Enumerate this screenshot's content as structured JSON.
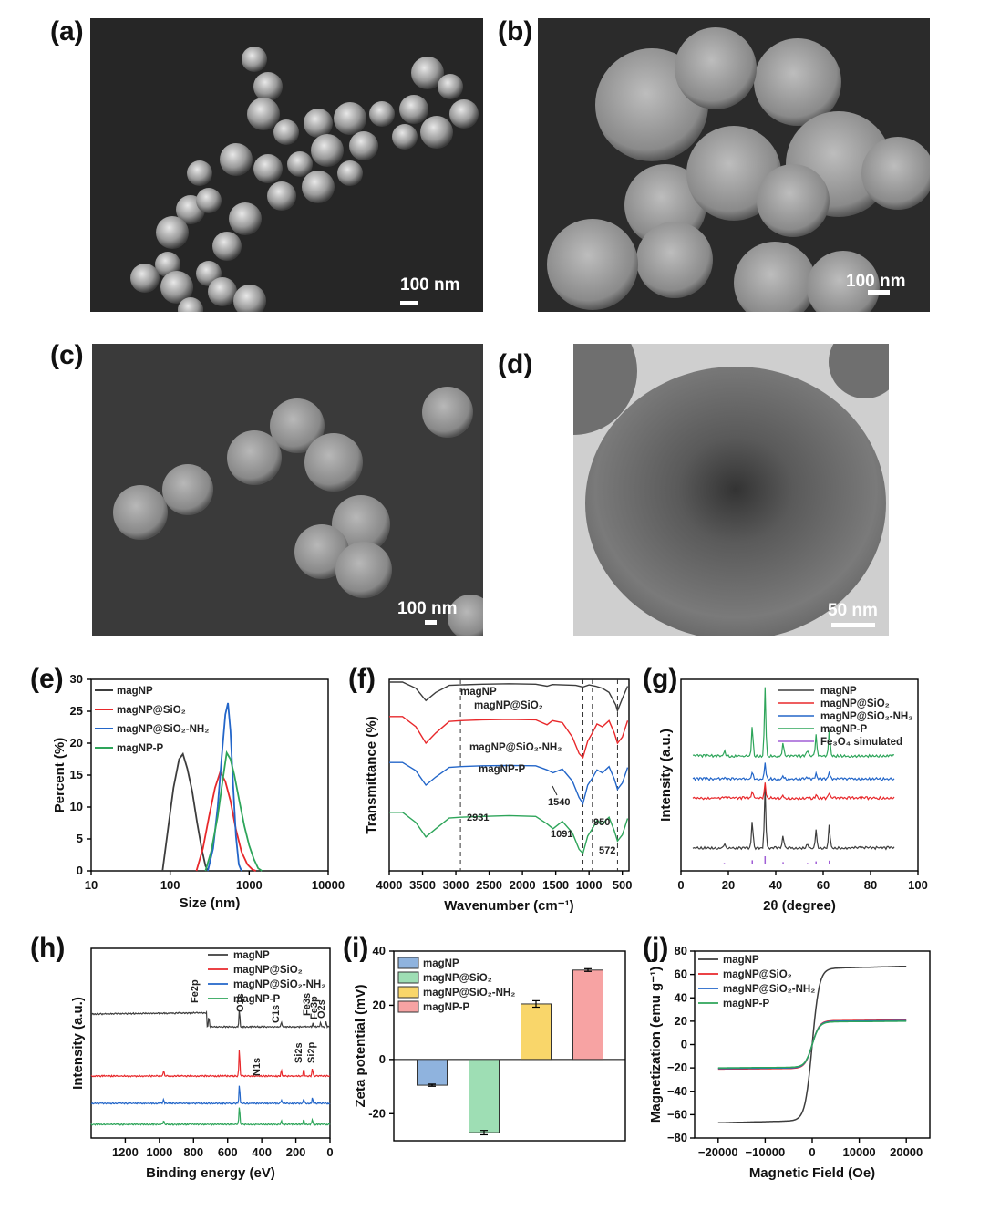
{
  "panels": {
    "a": {
      "label": "(a)",
      "scale": "100 nm"
    },
    "b": {
      "label": "(b)",
      "scale": "100 nm"
    },
    "c": {
      "label": "(c)",
      "scale": "100 nm"
    },
    "d": {
      "label": "(d)",
      "scale": "50 nm"
    },
    "e": {
      "label": "(e)"
    },
    "f": {
      "label": "(f)"
    },
    "g": {
      "label": "(g)"
    },
    "h": {
      "label": "(h)"
    },
    "i": {
      "label": "(i)"
    },
    "j": {
      "label": "(j)"
    }
  },
  "colors": {
    "magNP": "#3d3d3d",
    "magNP@SiO2": "#e8282b",
    "magNP@SiO2-NH2": "#2366c9",
    "magNP-P": "#2ea55a",
    "simulated": "#a05ed6"
  },
  "chart_data": [
    {
      "id": "e",
      "type": "line",
      "xlabel": "Size (nm)",
      "ylabel": "Percent (%)",
      "xscale": "log",
      "xlim": [
        10,
        10000
      ],
      "ylim": [
        0,
        30
      ],
      "xticks": [
        "10",
        "100",
        "1000",
        "10000"
      ],
      "yticks": [
        "0",
        "5",
        "10",
        "15",
        "20",
        "25",
        "30"
      ],
      "legend": "top-left",
      "series": [
        {
          "name": "magNP",
          "color": "#3d3d3d",
          "x": [
            80,
            95,
            110,
            130,
            145,
            165,
            190,
            220,
            250,
            280,
            300
          ],
          "y": [
            0,
            7,
            13,
            17.5,
            18.3,
            16,
            12.5,
            7.5,
            3.5,
            0.8,
            0
          ]
        },
        {
          "name": "magNP@SiO₂",
          "color": "#e8282b",
          "x": [
            215,
            260,
            310,
            370,
            430,
            500,
            580,
            680,
            800,
            950,
            1100,
            1220
          ],
          "y": [
            0,
            3.5,
            8.5,
            13,
            15.5,
            14,
            11,
            6.5,
            3,
            1,
            0.2,
            0
          ]
        },
        {
          "name": "magNP@SiO₂-NH₂",
          "color": "#2366c9",
          "x": [
            300,
            350,
            400,
            450,
            500,
            540,
            580,
            630,
            680,
            740,
            800
          ],
          "y": [
            0,
            3.5,
            10,
            18,
            24.5,
            26.3,
            22,
            13,
            5.5,
            1,
            0
          ]
        },
        {
          "name": "magNP-P",
          "color": "#2ea55a",
          "x": [
            280,
            330,
            400,
            460,
            520,
            580,
            650,
            750,
            870,
            1000,
            1150,
            1300,
            1450
          ],
          "y": [
            0,
            3,
            8.5,
            14,
            18.5,
            17.5,
            15,
            11,
            7,
            4,
            1.8,
            0.4,
            0
          ]
        }
      ]
    },
    {
      "id": "f",
      "type": "line",
      "xlabel": "Wavenumber (cm⁻¹)",
      "ylabel": "Transmittance (%)",
      "xlim": [
        4000,
        400
      ],
      "xticks": [
        "4000",
        "3500",
        "3000",
        "2500",
        "2000",
        "1500",
        "1000",
        "500"
      ],
      "dashed_lines": [
        2931,
        1091,
        950,
        572
      ],
      "annotations": [
        "2931",
        "1540",
        "1091",
        "950",
        "572"
      ],
      "series": [
        {
          "name": "magNP",
          "color": "#3d3d3d",
          "offset": 0.9,
          "x": [
            4000,
            3800,
            3600,
            3450,
            3300,
            3100,
            2931,
            2600,
            2200,
            1800,
            1630,
            1550,
            1400,
            1200,
            1091,
            1000,
            900,
            800,
            700,
            600,
            572,
            500,
            420
          ],
          "y": [
            1,
            1,
            0.85,
            0.55,
            0.75,
            0.92,
            0.93,
            0.95,
            0.96,
            0.95,
            0.9,
            0.94,
            0.93,
            0.92,
            0.88,
            0.93,
            0.9,
            0.85,
            0.75,
            0.45,
            0.3,
            0.6,
            0.9
          ]
        },
        {
          "name": "magNP@SiO₂",
          "color": "#e8282b",
          "offset": 0.72,
          "x": [
            4000,
            3800,
            3600,
            3450,
            3300,
            3100,
            2931,
            2600,
            2200,
            1800,
            1630,
            1550,
            1400,
            1250,
            1150,
            1091,
            1020,
            950,
            880,
            800,
            700,
            620,
            572,
            500,
            420
          ],
          "y": [
            1,
            1,
            0.75,
            0.35,
            0.6,
            0.88,
            0.9,
            0.92,
            0.93,
            0.92,
            0.8,
            0.9,
            0.85,
            0.5,
            0.1,
            0,
            0.4,
            0.6,
            0.82,
            0.75,
            0.9,
            0.6,
            0.35,
            0.5,
            0.9
          ]
        },
        {
          "name": "magNP@SiO₂-NH₂",
          "color": "#2366c9",
          "offset": 0.48,
          "x": [
            4000,
            3800,
            3600,
            3450,
            3300,
            3100,
            2931,
            2600,
            2200,
            1800,
            1630,
            1540,
            1400,
            1250,
            1150,
            1091,
            1020,
            950,
            880,
            800,
            700,
            620,
            572,
            500,
            420
          ],
          "y": [
            1,
            1,
            0.8,
            0.45,
            0.65,
            0.88,
            0.9,
            0.92,
            0.93,
            0.92,
            0.82,
            0.75,
            0.84,
            0.55,
            0.15,
            0,
            0.45,
            0.62,
            0.82,
            0.75,
            0.9,
            0.6,
            0.35,
            0.5,
            0.88
          ]
        },
        {
          "name": "magNP-P",
          "color": "#2ea55a",
          "offset": 0.22,
          "x": [
            4000,
            3800,
            3600,
            3450,
            3300,
            3100,
            2931,
            2600,
            2200,
            1800,
            1630,
            1540,
            1400,
            1250,
            1150,
            1091,
            1020,
            950,
            880,
            800,
            700,
            620,
            572,
            500,
            420
          ],
          "y": [
            1,
            1,
            0.75,
            0.4,
            0.6,
            0.86,
            0.88,
            0.9,
            0.92,
            0.9,
            0.72,
            0.6,
            0.78,
            0.5,
            0.1,
            0,
            0.42,
            0.6,
            0.8,
            0.72,
            0.88,
            0.55,
            0.3,
            0.45,
            0.85
          ]
        }
      ]
    },
    {
      "id": "g",
      "type": "line",
      "xlabel": "2θ (degree)",
      "ylabel": "Intensity (a.u.)",
      "xlim": [
        0,
        100
      ],
      "xticks": [
        "0",
        "20",
        "40",
        "60",
        "80",
        "100"
      ],
      "legend": "top-right",
      "peaks": [
        18.3,
        30.1,
        35.5,
        43.1,
        53.4,
        57.0,
        62.6
      ],
      "peak_heights": [
        0.08,
        0.45,
        1,
        0.2,
        0.08,
        0.3,
        0.4
      ],
      "series": [
        {
          "name": "magNP",
          "color": "#3d3d3d",
          "offset": 0.12,
          "scale": 0.32
        },
        {
          "name": "magNP@SiO₂",
          "color": "#e8282b",
          "offset": 0.38,
          "scale": 0.08
        },
        {
          "name": "magNP@SiO₂-NH₂",
          "color": "#2366c9",
          "offset": 0.48,
          "scale": 0.09
        },
        {
          "name": "magNP-P",
          "color": "#2ea55a",
          "offset": 0.6,
          "scale": 0.36
        },
        {
          "name": "Fe₃O₄ simulated",
          "color": "#a05ed6",
          "type": "stick"
        }
      ]
    },
    {
      "id": "h",
      "type": "line",
      "xlabel": "Binding energy (eV)",
      "ylabel": "Intensity (a.u.)",
      "xlim": [
        1400,
        0
      ],
      "xticks": [
        "1200",
        "1000",
        "800",
        "600",
        "400",
        "200",
        "0"
      ],
      "legend": "top-right",
      "annotations": [
        "Fe2p",
        "O1s",
        "C1s",
        "Fe3s",
        "Fe3p",
        "O2s",
        "Si2s",
        "Si2p",
        "N1s"
      ],
      "series": [
        {
          "name": "magNP",
          "color": "#3d3d3d"
        },
        {
          "name": "magNP@SiO₂",
          "color": "#e8282b"
        },
        {
          "name": "magNP@SiO₂-NH₂",
          "color": "#2366c9"
        },
        {
          "name": "magNP-P",
          "color": "#2ea55a"
        }
      ]
    },
    {
      "id": "i",
      "type": "bar",
      "ylabel": "Zeta potential (mV)",
      "ylim": [
        -30,
        40
      ],
      "yticks": [
        "-20",
        "0",
        "20",
        "40"
      ],
      "legend": "top-left",
      "categories": [
        "magNP",
        "magNP@SiO₂",
        "magNP@SiO₂-NH₂",
        "magNP-P"
      ],
      "values": [
        -9.5,
        -27,
        20.5,
        33
      ],
      "errors": [
        0.4,
        0.8,
        1.2,
        0.5
      ],
      "bar_colors": [
        "#8fb3de",
        "#9edeb4",
        "#f9d66a",
        "#f7a3a3"
      ]
    },
    {
      "id": "j",
      "type": "line",
      "xlabel": "Magnetic Field (Oe)",
      "ylabel": "Magnetization (emu g⁻¹)",
      "xlim": [
        -25000,
        25000
      ],
      "ylim": [
        -80,
        80
      ],
      "xticks": [
        "−20000",
        "−10000",
        "0",
        "10000",
        "20000"
      ],
      "yticks": [
        "−80",
        "−60",
        "−40",
        "−20",
        "0",
        "20",
        "40",
        "60",
        "80"
      ],
      "legend": "top-left",
      "series": [
        {
          "name": "magNP",
          "color": "#3d3d3d",
          "ms": 67
        },
        {
          "name": "magNP@SiO₂",
          "color": "#e8282b",
          "ms": 21
        },
        {
          "name": "magNP@SiO₂-NH₂",
          "color": "#2366c9",
          "ms": 20.5
        },
        {
          "name": "magNP-P",
          "color": "#2ea55a",
          "ms": 20
        }
      ]
    }
  ]
}
